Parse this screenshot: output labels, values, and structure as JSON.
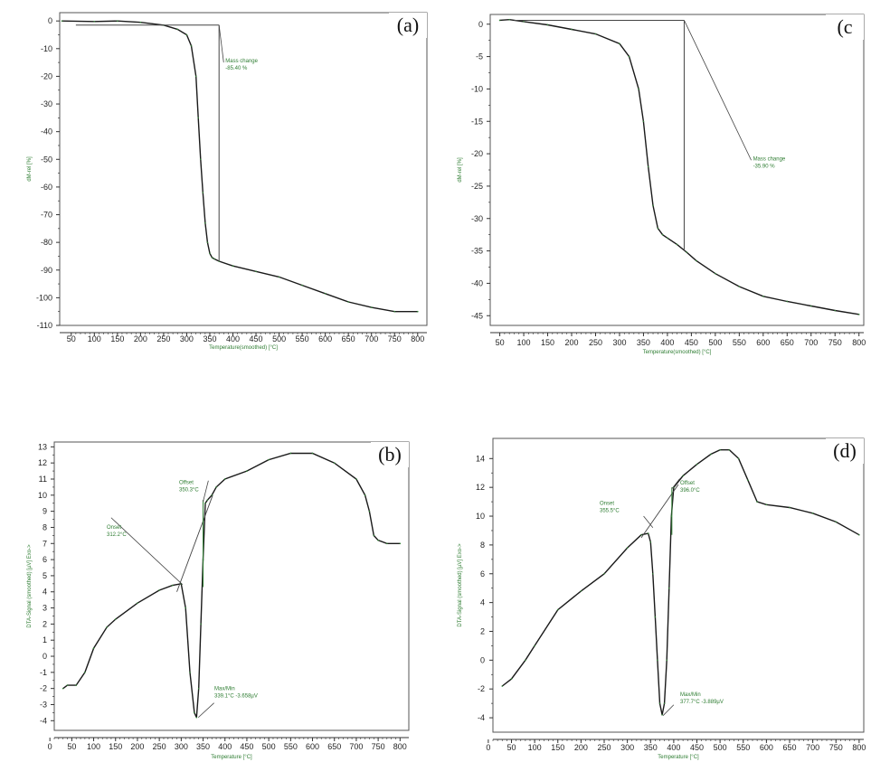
{
  "chart_data": [
    {
      "id": "a",
      "type": "line",
      "panel_label": "(a)",
      "xlabel": "Temperature(smoothed) [°C]",
      "ylabel": "dM-rel [%]",
      "xlim": [
        25,
        820
      ],
      "ylim": [
        -110,
        3
      ],
      "xticks": [
        50,
        100,
        150,
        200,
        250,
        300,
        350,
        400,
        450,
        500,
        550,
        600,
        650,
        700,
        750,
        800
      ],
      "yticks": [
        0,
        -10,
        -20,
        -30,
        -40,
        -50,
        -60,
        -70,
        -80,
        -90,
        -100,
        -110
      ],
      "grid": false,
      "series": [
        {
          "x": [
            30,
            100,
            150,
            200,
            250,
            280,
            300,
            310,
            320,
            325,
            330,
            335,
            340,
            345,
            350,
            355,
            360,
            370,
            400,
            450,
            500,
            550,
            600,
            650,
            700,
            750,
            800
          ],
          "y": [
            0,
            -0.2,
            0,
            -0.5,
            -1.5,
            -3,
            -5,
            -9,
            -20,
            -35,
            -50,
            -62,
            -73,
            -80,
            -84,
            -85.5,
            -86,
            -86.8,
            -88.5,
            -90.5,
            -92.5,
            -95.5,
            -98.5,
            -101.5,
            -103.5,
            -105,
            -105
          ]
        }
      ],
      "annotations": [
        {
          "text": "Mass change",
          "text2": "-85.40 %"
        }
      ],
      "mass_line": {
        "x": 370,
        "y_top": -1.5,
        "y_bottom": -86.8
      },
      "label_point": [
        380,
        -15
      ]
    },
    {
      "id": "c",
      "type": "line",
      "panel_label": "(c",
      "xlabel": "Temperature(smoothed) [°C]",
      "ylabel": "dM-rel [%]",
      "xlim": [
        30,
        810
      ],
      "ylim": [
        -46.5,
        1.5
      ],
      "xticks": [
        50,
        100,
        150,
        200,
        250,
        300,
        350,
        400,
        450,
        500,
        550,
        600,
        650,
        700,
        750,
        800
      ],
      "yticks": [
        0,
        -5,
        -10,
        -15,
        -20,
        -25,
        -30,
        -35,
        -40,
        -45
      ],
      "grid": false,
      "series": [
        {
          "x": [
            50,
            70,
            100,
            150,
            200,
            250,
            300,
            320,
            340,
            350,
            360,
            370,
            380,
            390,
            400,
            420,
            440,
            460,
            500,
            550,
            600,
            650,
            700,
            750,
            800
          ],
          "y": [
            0.6,
            0.7,
            0.4,
            -0.1,
            -0.8,
            -1.5,
            -3,
            -5,
            -10,
            -15,
            -22,
            -28,
            -31.5,
            -32.5,
            -33,
            -34,
            -35.2,
            -36.5,
            -38.5,
            -40.5,
            -42,
            -42.8,
            -43.5,
            -44.2,
            -44.8
          ]
        }
      ],
      "annotations": [
        {
          "text": "Mass change",
          "text2": "-35.90 %"
        }
      ],
      "mass_line": {
        "x": 435,
        "y_top": 0.6,
        "y_bottom": -35
      },
      "label_point": [
        575,
        -21
      ]
    },
    {
      "id": "b",
      "type": "line",
      "panel_label": "(b)",
      "xlabel": "Temperature [°C]",
      "ylabel": "DTA-Signal (smoothed) [µV] Exo->",
      "xlim": [
        10,
        820
      ],
      "ylim": [
        -4.6,
        13.3
      ],
      "xticks": [
        0,
        50,
        100,
        150,
        200,
        250,
        300,
        350,
        400,
        450,
        500,
        550,
        600,
        650,
        700,
        750,
        800
      ],
      "yticks": [
        13,
        12,
        11,
        10,
        9,
        8,
        7,
        6,
        5,
        4,
        3,
        2,
        1,
        0,
        -1,
        -2,
        -3,
        -4
      ],
      "grid": false,
      "series": [
        {
          "x": [
            30,
            40,
            60,
            80,
            100,
            130,
            150,
            200,
            250,
            280,
            300,
            310,
            320,
            330,
            335,
            340,
            345,
            350,
            355,
            360,
            370,
            380,
            400,
            450,
            500,
            550,
            600,
            650,
            700,
            720,
            730,
            740,
            750,
            770,
            800
          ],
          "y": [
            -2,
            -1.8,
            -1.8,
            -1,
            0.5,
            1.8,
            2.3,
            3.3,
            4.1,
            4.4,
            4.5,
            3,
            -1,
            -3.5,
            -3.8,
            -2,
            2,
            6,
            9.5,
            9.7,
            10,
            10.5,
            11,
            11.5,
            12.2,
            12.6,
            12.6,
            12,
            11,
            10,
            9,
            7.5,
            7.2,
            7,
            7
          ]
        }
      ],
      "annotations": [
        {
          "text": "Onset",
          "text2": "312.2°C"
        },
        {
          "text": "Offset",
          "text2": "350.3°C"
        },
        {
          "text": "Max/Min",
          "text2": "339.1°C -3.658µV"
        }
      ]
    },
    {
      "id": "d",
      "type": "line",
      "panel_label": "(d)",
      "xlabel": "Temperature [°C]",
      "ylabel": "DTA-Signal (smoothed) [µV] Exo->",
      "xlim": [
        10,
        810
      ],
      "ylim": [
        -5,
        15.4
      ],
      "xticks": [
        0,
        50,
        100,
        150,
        200,
        250,
        300,
        350,
        400,
        450,
        500,
        550,
        600,
        650,
        700,
        750,
        800
      ],
      "yticks": [
        14,
        12,
        10,
        8,
        6,
        4,
        2,
        0,
        -2,
        -4
      ],
      "grid": false,
      "series": [
        {
          "x": [
            30,
            50,
            80,
            100,
            150,
            200,
            250,
            300,
            330,
            345,
            350,
            355,
            360,
            365,
            370,
            375,
            380,
            385,
            390,
            395,
            400,
            420,
            450,
            480,
            500,
            520,
            540,
            560,
            580,
            600,
            650,
            700,
            750,
            800
          ],
          "y": [
            -1.8,
            -1.3,
            0,
            1,
            3.5,
            4.8,
            6,
            7.8,
            8.7,
            8.8,
            8.2,
            6,
            3,
            0,
            -3,
            -3.8,
            -3,
            0,
            5,
            10,
            12,
            12.8,
            13.6,
            14.3,
            14.6,
            14.6,
            14,
            12.5,
            11,
            10.8,
            10.6,
            10.2,
            9.6,
            8.7
          ]
        }
      ],
      "annotations": [
        {
          "text": "Onset",
          "text2": "355.5°C"
        },
        {
          "text": "Offset",
          "text2": "396.0°C"
        },
        {
          "text": "Max/Min",
          "text2": "377.7°C -3.889µV"
        }
      ]
    }
  ]
}
